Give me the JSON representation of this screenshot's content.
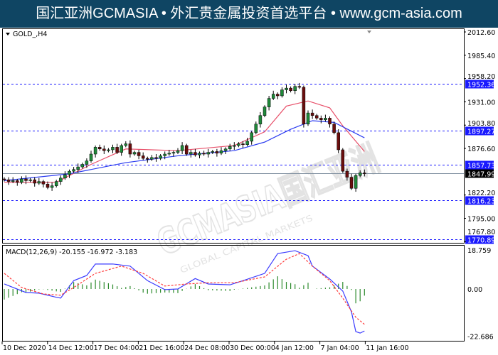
{
  "banner": {
    "text": "国汇亚洲GCMASIA • 外汇贵金属投资首选平台 • www.gcm-asia.com",
    "bg": "#0f4563"
  },
  "chart": {
    "symbol_label": "GOLD_,H4",
    "watermark": "GCMASIA国汇亚洲",
    "watermark_sub": "GLOBAL CAPITAL MARKETS",
    "price_ticks": [
      "2012.60",
      "1985.40",
      "1958.20",
      "1931.00",
      "1903.80",
      "1876.60",
      "1822.20",
      "1795.00",
      "1767.80"
    ],
    "levels": [
      {
        "value": "1952.36",
        "color": "#1a1aff"
      },
      {
        "value": "1897.27",
        "color": "#1a1aff"
      },
      {
        "value": "1857.73",
        "color": "#1a1aff"
      },
      {
        "value": "1816.23",
        "color": "#1a1aff"
      },
      {
        "value": "1770.89",
        "color": "#1a1aff"
      }
    ],
    "current_price": "1847.99",
    "closes": [
      1840,
      1838,
      1839,
      1837,
      1841,
      1839,
      1840,
      1836,
      1838,
      1835,
      1831,
      1833,
      1838,
      1842,
      1846,
      1850,
      1852,
      1855,
      1858,
      1862,
      1870,
      1878,
      1876,
      1874,
      1875,
      1878,
      1872,
      1880,
      1882,
      1870,
      1872,
      1868,
      1865,
      1864,
      1866,
      1865,
      1868,
      1870,
      1871,
      1872,
      1874,
      1880,
      1870,
      1872,
      1869,
      1871,
      1870,
      1872,
      1873,
      1871,
      1874,
      1876,
      1879,
      1880,
      1882,
      1881,
      1885,
      1895,
      1905,
      1915,
      1925,
      1935,
      1940,
      1938,
      1945,
      1947,
      1944,
      1949,
      1948,
      1905,
      1918,
      1915,
      1912,
      1910,
      1912,
      1905,
      1895,
      1875,
      1850,
      1843,
      1830,
      1845,
      1848,
      1847.99
    ],
    "ma_red": [
      [
        0,
        1837
      ],
      [
        12,
        1837
      ],
      [
        20,
        1858
      ],
      [
        28,
        1876
      ],
      [
        40,
        1874
      ],
      [
        53,
        1880
      ],
      [
        60,
        1896
      ],
      [
        65,
        1926
      ],
      [
        70,
        1932
      ],
      [
        75,
        1924
      ],
      [
        78,
        1903
      ],
      [
        83,
        1873
      ]
    ],
    "ma_blue": [
      [
        0,
        1839
      ],
      [
        15,
        1847
      ],
      [
        28,
        1860
      ],
      [
        40,
        1868
      ],
      [
        53,
        1874
      ],
      [
        60,
        1884
      ],
      [
        66,
        1899
      ],
      [
        71,
        1909
      ],
      [
        76,
        1907
      ],
      [
        83,
        1889
      ]
    ],
    "ma_red_color": "#e8506a",
    "ma_blue_color": "#2b3cf0",
    "bull_color": "#1f8a3a",
    "bear_color": "#6b0d0d"
  },
  "macd": {
    "label": "MACD(12,26,9) -20.155 -16.972 -3.183",
    "ticks": [
      "18.759",
      "0.00",
      "-22.686"
    ],
    "range": [
      -22.686,
      18.759
    ],
    "main": [
      [
        0,
        2.4
      ],
      [
        5,
        -1.7
      ],
      [
        8,
        -2
      ],
      [
        12,
        -4
      ],
      [
        13,
        -4.4
      ],
      [
        16,
        4
      ],
      [
        19,
        6.5
      ],
      [
        21,
        12
      ],
      [
        25,
        12
      ],
      [
        29,
        11
      ],
      [
        33,
        4
      ],
      [
        37,
        -0.3
      ],
      [
        40,
        0
      ],
      [
        44,
        5
      ],
      [
        47,
        2.4
      ],
      [
        52,
        2
      ],
      [
        55,
        4
      ],
      [
        60,
        7.5
      ],
      [
        63,
        17
      ],
      [
        67,
        18.4
      ],
      [
        70,
        16
      ],
      [
        71,
        11
      ],
      [
        75,
        4.8
      ],
      [
        78,
        -1
      ],
      [
        80,
        -11
      ],
      [
        81,
        -20.5
      ],
      [
        82,
        -21.2
      ],
      [
        83,
        -20.2
      ]
    ],
    "signal": [
      [
        0,
        7.5
      ],
      [
        4,
        0.7
      ],
      [
        9,
        -2.4
      ],
      [
        13,
        -3
      ],
      [
        16,
        0.7
      ],
      [
        21,
        7.5
      ],
      [
        27,
        11
      ],
      [
        32,
        7.5
      ],
      [
        37,
        1.4
      ],
      [
        42,
        2.4
      ],
      [
        47,
        3
      ],
      [
        53,
        3
      ],
      [
        60,
        5.8
      ],
      [
        65,
        14.3
      ],
      [
        68,
        17
      ],
      [
        71,
        11
      ],
      [
        75,
        4
      ],
      [
        78,
        -4.4
      ],
      [
        81,
        -13.6
      ],
      [
        83,
        -17
      ]
    ],
    "main_color": "#3b3bff",
    "signal_color": "#ff3b3b",
    "hist_color": "#2e8b2e"
  },
  "time_axis": [
    "10 Dec 2020",
    "14 Dec 12:00",
    "17 Dec 04:00",
    "21 Dec 16:00",
    "24 Dec 08:00",
    "30 Dec 00:00",
    "4 Jan 12:00",
    "7 Jan 04:00",
    "11 Jan 16:00"
  ]
}
